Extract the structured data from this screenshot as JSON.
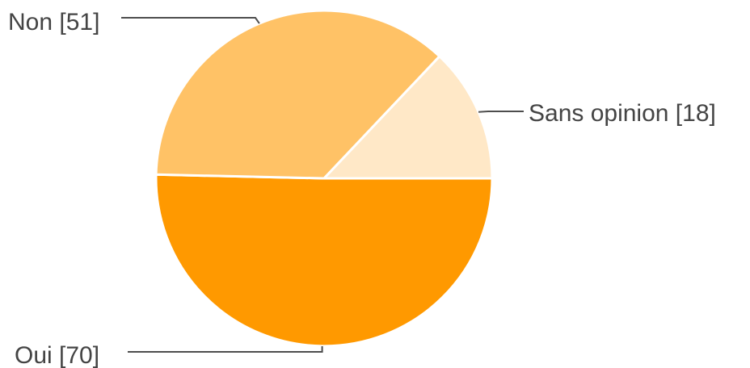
{
  "chart_data": {
    "type": "pie",
    "categories": [
      "Oui",
      "Non",
      "Sans opinion"
    ],
    "values": [
      70,
      51,
      18
    ],
    "colors": [
      "#ff9900",
      "#ffc266",
      "#ffe8c7"
    ],
    "labels": [
      "Oui [70]",
      "Non [51]",
      "Sans opinion [18]"
    ],
    "start_angle": "3 o'clock",
    "direction": "clockwise",
    "legend": "none"
  }
}
